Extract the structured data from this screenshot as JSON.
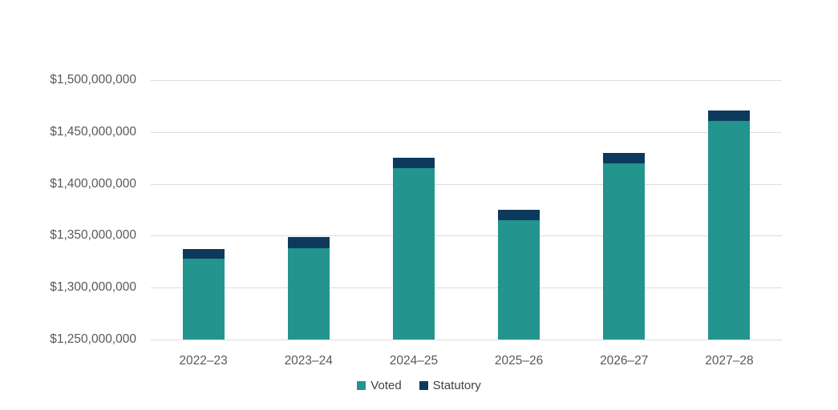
{
  "chart_data": {
    "type": "bar",
    "stacked": true,
    "title": "",
    "categories": [
      "2022–23",
      "2023–24",
      "2024–25",
      "2025–26",
      "2026–27",
      "2027–28"
    ],
    "series": [
      {
        "name": "Voted",
        "color": "#23948E",
        "values": [
          1328000000,
          1338000000,
          1415000000,
          1365000000,
          1420000000,
          1461000000
        ]
      },
      {
        "name": "Statutory",
        "color": "#0D3A5C",
        "values": [
          9000000,
          11000000,
          10000000,
          10000000,
          10000000,
          10000000
        ]
      }
    ],
    "xlabel": "",
    "ylabel": "",
    "ylim": [
      1250000000,
      1500000000
    ],
    "ytick_step": 50000000,
    "ytick_labels": [
      "$1,500,000,000",
      "$1,450,000,000",
      "$1,400,000,000",
      "$1,350,000,000",
      "$1,300,000,000",
      "$1,250,000,000"
    ],
    "grid": true,
    "legend_position": "bottom"
  },
  "colors": {
    "voted": "#23948E",
    "statutory": "#0D3A5C",
    "gridline": "#DCDCDC",
    "axis_text": "#595959",
    "legend_text": "#404040",
    "background": "#FFFFFF"
  }
}
